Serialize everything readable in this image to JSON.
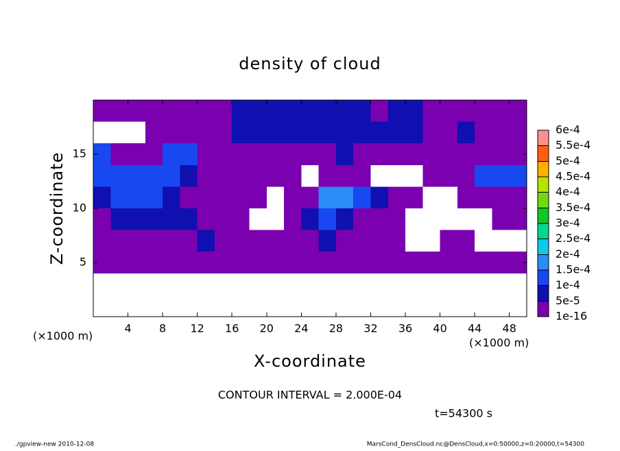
{
  "chart_data": {
    "type": "contour",
    "title": "density of cloud",
    "x_label": "X-coordinate",
    "y_label": "Z-coordinate",
    "x_unit_left": "(×1000 m)",
    "x_unit_right": "(×1000 m)",
    "contour_interval": "CONTOUR INTERVAL = 2.000E-04",
    "time_label": "t=54300 s",
    "footer_left": "./gpview-new   2010-12-08",
    "footer_right": "MarsCond_DensCloud.nc@DensCloud,x=0:50000,z=0:20000,t=54300",
    "xlim": [
      0,
      50
    ],
    "ylim": [
      0,
      20
    ],
    "xticks": [
      4,
      8,
      12,
      16,
      20,
      24,
      28,
      32,
      36,
      40,
      44,
      48
    ],
    "yticks": [
      5,
      10,
      15
    ],
    "x": [
      1,
      3,
      5,
      7,
      9,
      11,
      13,
      15,
      17,
      19,
      21,
      23,
      25,
      27,
      29,
      31,
      33,
      35,
      37,
      39,
      41,
      43,
      45,
      47,
      49
    ],
    "y": [
      19,
      17,
      15,
      13,
      11,
      9,
      7,
      5,
      3,
      1
    ],
    "z": [
      [
        1e-05,
        1e-05,
        1e-05,
        1e-05,
        1e-05,
        1e-05,
        1e-05,
        1e-05,
        7e-05,
        7e-05,
        7e-05,
        7e-05,
        7e-05,
        7e-05,
        7e-05,
        7e-05,
        1e-05,
        7e-05,
        7e-05,
        1e-05,
        1e-05,
        1e-05,
        1e-05,
        1e-05,
        1e-05
      ],
      [
        0,
        0,
        0,
        1e-05,
        1e-05,
        1e-05,
        1e-05,
        1e-05,
        7e-05,
        7e-05,
        7e-05,
        7e-05,
        7e-05,
        7e-05,
        7e-05,
        7e-05,
        7e-05,
        7e-05,
        7e-05,
        1e-05,
        1e-05,
        7e-05,
        1e-05,
        1e-05,
        1e-05
      ],
      [
        0.00012,
        1e-05,
        1e-05,
        1e-05,
        0.00012,
        0.00012,
        1e-05,
        1e-05,
        1e-05,
        1e-05,
        1e-05,
        1e-05,
        1e-05,
        1e-05,
        7e-05,
        1e-05,
        1e-05,
        1e-05,
        1e-05,
        1e-05,
        1e-05,
        1e-05,
        1e-05,
        1e-05,
        1e-05
      ],
      [
        0.00012,
        0.00012,
        0.00012,
        0.00012,
        0.00012,
        7e-05,
        1e-05,
        1e-05,
        1e-05,
        1e-05,
        1e-05,
        1e-05,
        0,
        1e-05,
        1e-05,
        1e-05,
        0,
        0,
        0,
        1e-05,
        1e-05,
        1e-05,
        0.00012,
        0.00012,
        0.00012
      ],
      [
        7e-05,
        0.00012,
        0.00012,
        0.00012,
        7e-05,
        1e-05,
        1e-05,
        1e-05,
        1e-05,
        1e-05,
        0,
        1e-05,
        1e-05,
        0.00016,
        0.00016,
        0.00012,
        7e-05,
        1e-05,
        1e-05,
        0,
        0,
        1e-05,
        1e-05,
        1e-05,
        1e-05
      ],
      [
        1e-05,
        7e-05,
        7e-05,
        7e-05,
        7e-05,
        7e-05,
        1e-05,
        1e-05,
        1e-05,
        0,
        0,
        1e-05,
        7e-05,
        0.00012,
        7e-05,
        1e-05,
        1e-05,
        1e-05,
        0,
        0,
        0,
        0,
        0,
        1e-05,
        1e-05
      ],
      [
        1e-05,
        1e-05,
        1e-05,
        1e-05,
        1e-05,
        1e-05,
        7e-05,
        1e-05,
        1e-05,
        1e-05,
        1e-05,
        1e-05,
        1e-05,
        7e-05,
        1e-05,
        1e-05,
        1e-05,
        1e-05,
        0,
        0,
        1e-05,
        1e-05,
        0,
        0,
        0
      ],
      [
        1e-05,
        1e-05,
        1e-05,
        1e-05,
        1e-05,
        1e-05,
        1e-05,
        1e-05,
        1e-05,
        1e-05,
        1e-05,
        1e-05,
        1e-05,
        1e-05,
        1e-05,
        1e-05,
        1e-05,
        1e-05,
        1e-05,
        1e-05,
        1e-05,
        1e-05,
        1e-05,
        1e-05,
        1e-05
      ],
      [
        0,
        0,
        0,
        0,
        0,
        0,
        0,
        0,
        0,
        0,
        0,
        0,
        0,
        0,
        0,
        0,
        0,
        0,
        0,
        0,
        0,
        0,
        0,
        0,
        0
      ],
      [
        0,
        0,
        0,
        0,
        0,
        0,
        0,
        0,
        0,
        0,
        0,
        0,
        0,
        0,
        0,
        0,
        0,
        0,
        0,
        0,
        0,
        0,
        0,
        0,
        0
      ]
    ],
    "levels": [
      {
        "value": 1e-16,
        "label": "1e-16"
      },
      {
        "value": 5e-05,
        "label": "5e-5"
      },
      {
        "value": 0.0001,
        "label": "1e-4"
      },
      {
        "value": 0.00015,
        "label": "1.5e-4"
      },
      {
        "value": 0.0002,
        "label": "2e-4"
      },
      {
        "value": 0.00025,
        "label": "2.5e-4"
      },
      {
        "value": 0.0003,
        "label": "3e-4"
      },
      {
        "value": 0.00035,
        "label": "3.5e-4"
      },
      {
        "value": 0.0004,
        "label": "4e-4"
      },
      {
        "value": 0.00045,
        "label": "4.5e-4"
      },
      {
        "value": 0.0005,
        "label": "5e-4"
      },
      {
        "value": 0.00055,
        "label": "5.5e-4"
      },
      {
        "value": 0.0006,
        "label": "6e-4"
      }
    ],
    "level_colors": [
      "#7a00b0",
      "#1010b0",
      "#1848f0",
      "#2a8cf5",
      "#10c8e8",
      "#00d890",
      "#10c820",
      "#70d810",
      "#b8e000",
      "#ffb000",
      "#ff6010",
      "#f01818"
    ],
    "top_color": "#ff9090"
  }
}
